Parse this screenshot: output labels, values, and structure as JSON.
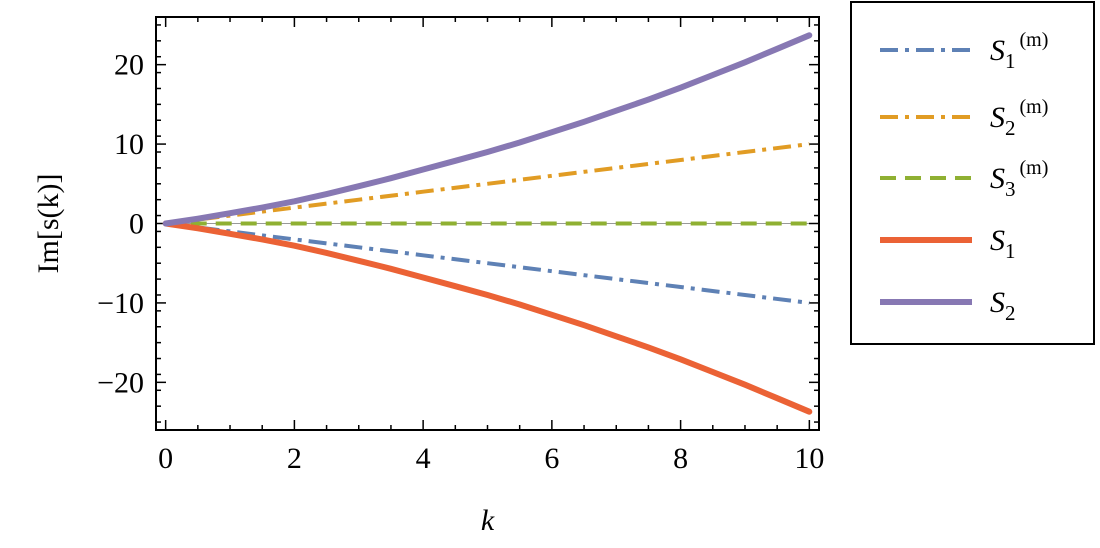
{
  "chart_data": {
    "type": "line",
    "title": "",
    "xlabel": "k",
    "ylabel": "Im[s(k)]",
    "xlim": [
      -0.15,
      10.15
    ],
    "ylim": [
      -26,
      26
    ],
    "xticks": [
      0,
      2,
      4,
      6,
      8,
      10
    ],
    "xtick_labels": [
      "0",
      "2",
      "4",
      "6",
      "8",
      "10"
    ],
    "yticks": [
      -20,
      -10,
      0,
      10,
      20
    ],
    "ytick_labels": [
      "−20",
      "−10",
      "0",
      "10",
      "20"
    ],
    "grid": false,
    "frame": true,
    "legend_placement": "outside-right-top",
    "series": [
      {
        "name": "S1(m)",
        "legend_main": "S",
        "legend_sub": "1",
        "legend_sup": "(m)",
        "color": "#5e81b5",
        "style": "dash-dot",
        "x": [
          0,
          1,
          2,
          3,
          4,
          5,
          6,
          7,
          8,
          9,
          10
        ],
        "values": [
          0,
          -1,
          -2,
          -3,
          -4,
          -5,
          -6,
          -7,
          -8,
          -9,
          -10
        ]
      },
      {
        "name": "S2(m)",
        "legend_main": "S",
        "legend_sub": "2",
        "legend_sup": "(m)",
        "color": "#e19c24",
        "style": "dash-dot",
        "x": [
          0,
          1,
          2,
          3,
          4,
          5,
          6,
          7,
          8,
          9,
          10
        ],
        "values": [
          0,
          1,
          2,
          3,
          4,
          5,
          6,
          7,
          8,
          9,
          10
        ]
      },
      {
        "name": "S3(m)",
        "legend_main": "S",
        "legend_sub": "3",
        "legend_sup": "(m)",
        "color": "#8fb032",
        "style": "dashed",
        "x": [
          0,
          1,
          2,
          3,
          4,
          5,
          6,
          7,
          8,
          9,
          10
        ],
        "values": [
          0,
          0,
          0,
          0,
          0,
          0,
          0,
          0,
          0,
          0,
          0
        ]
      },
      {
        "name": "S1",
        "legend_main": "S",
        "legend_sub": "1",
        "legend_sup": "",
        "color": "#eb6235",
        "style": "solid",
        "x": [
          0,
          0.5,
          1,
          1.5,
          2,
          2.5,
          3,
          3.5,
          4,
          4.5,
          5,
          5.5,
          6,
          6.5,
          7,
          7.5,
          8,
          8.5,
          9,
          9.5,
          10
        ],
        "values": [
          0,
          -0.6,
          -1.3,
          -2.0,
          -2.8,
          -3.7,
          -4.7,
          -5.7,
          -6.8,
          -7.9,
          -9.0,
          -10.2,
          -11.5,
          -12.8,
          -14.2,
          -15.6,
          -17.1,
          -18.7,
          -20.3,
          -22.0,
          -23.7
        ]
      },
      {
        "name": "S2",
        "legend_main": "S",
        "legend_sub": "2",
        "legend_sup": "",
        "color": "#8778b3",
        "style": "solid",
        "x": [
          0,
          0.5,
          1,
          1.5,
          2,
          2.5,
          3,
          3.5,
          4,
          4.5,
          5,
          5.5,
          6,
          6.5,
          7,
          7.5,
          8,
          8.5,
          9,
          9.5,
          10
        ],
        "values": [
          0,
          0.6,
          1.3,
          2.0,
          2.8,
          3.7,
          4.7,
          5.7,
          6.8,
          7.9,
          9.0,
          10.2,
          11.5,
          12.8,
          14.2,
          15.6,
          17.1,
          18.7,
          20.3,
          22.0,
          23.7
        ]
      }
    ]
  }
}
